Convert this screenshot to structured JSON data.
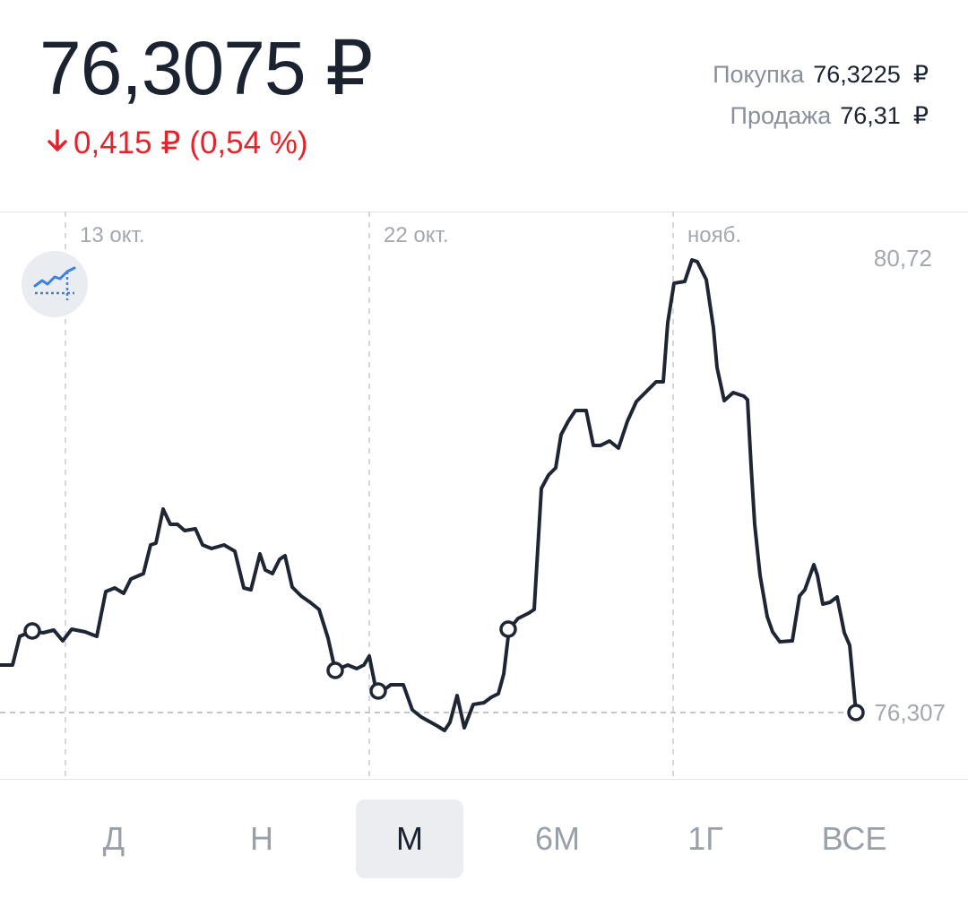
{
  "header": {
    "price": "76,3075 ₽",
    "change": "0,415 ₽ (0,54 %)",
    "change_direction": "down",
    "change_color": "#e5232d"
  },
  "quotes": {
    "buy_label": "Покупка",
    "buy_value": "76,3225",
    "sell_label": "Продажа",
    "sell_value": "76,31",
    "currency": "₽"
  },
  "chart_data": {
    "type": "line",
    "date_labels": [
      "13 окт.",
      "22 окт.",
      "нояб."
    ],
    "y_labels": {
      "max": "80,72",
      "current": "76,307"
    },
    "line_color": "#1f2633",
    "indicator_icon": "chart-trend-icon"
  },
  "periods": [
    {
      "label": "Д",
      "active": false
    },
    {
      "label": "Н",
      "active": false
    },
    {
      "label": "М",
      "active": true
    },
    {
      "label": "6М",
      "active": false
    },
    {
      "label": "1Г",
      "active": false
    },
    {
      "label": "ВСЕ",
      "active": false
    }
  ]
}
